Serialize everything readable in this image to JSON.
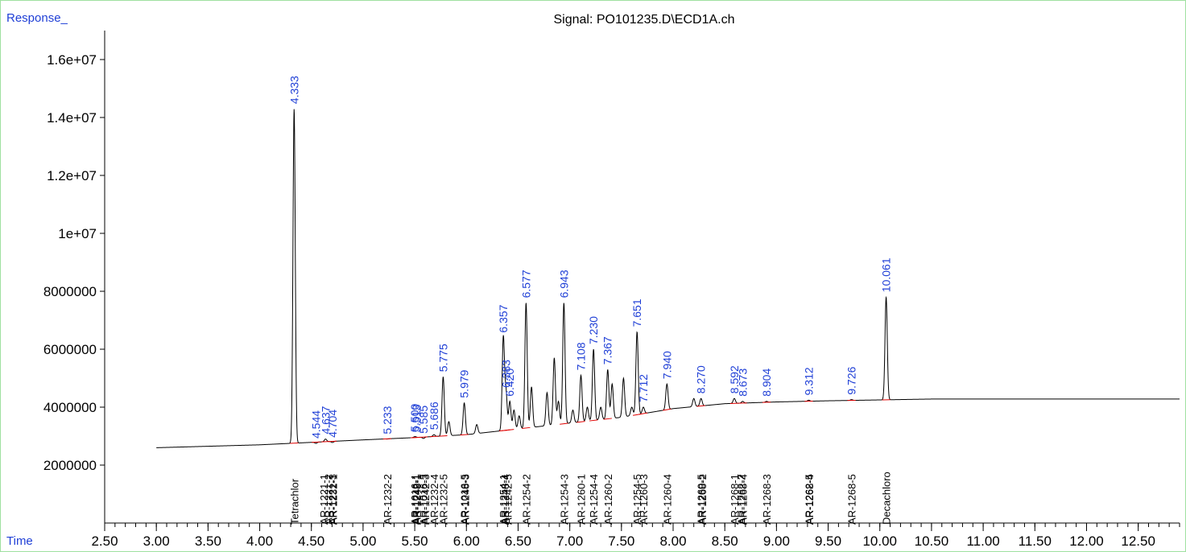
{
  "chart_data": {
    "type": "line",
    "title": "Signal: PO101235.D\\ECD1A.ch",
    "ylabel": "Response_",
    "xlabel": "Time",
    "xlim": [
      2.5,
      12.9
    ],
    "ylim": [
      0,
      17000000
    ],
    "x_ticks": [
      2.5,
      3.0,
      3.5,
      4.0,
      4.5,
      5.0,
      5.5,
      6.0,
      6.5,
      7.0,
      7.5,
      8.0,
      8.5,
      9.0,
      9.5,
      10.0,
      10.5,
      11.0,
      11.5,
      12.0,
      12.5
    ],
    "x_tick_labels": [
      "2.50",
      "3.00",
      "3.50",
      "4.00",
      "4.50",
      "5.00",
      "5.50",
      "6.00",
      "6.50",
      "7.00",
      "7.50",
      "8.00",
      "8.50",
      "9.00",
      "9.50",
      "10.00",
      "10.50",
      "11.00",
      "11.50",
      "12.00",
      "12.50"
    ],
    "y_ticks": [
      2000000,
      4000000,
      6000000,
      8000000,
      10000000,
      12000000,
      14000000,
      16000000
    ],
    "y_tick_labels": [
      "2000000",
      "4000000",
      "6000000",
      "8000000",
      "1e+07",
      "1.2e+07",
      "1.4e+07",
      "1.6e+07"
    ],
    "baseline": [
      [
        3.0,
        2600000
      ],
      [
        4.0,
        2700000
      ],
      [
        5.0,
        2870000
      ],
      [
        5.5,
        2950000
      ],
      [
        6.0,
        3050000
      ],
      [
        6.5,
        3250000
      ],
      [
        7.0,
        3450000
      ],
      [
        7.5,
        3650000
      ],
      [
        8.0,
        3950000
      ],
      [
        8.5,
        4120000
      ],
      [
        9.0,
        4180000
      ],
      [
        9.5,
        4220000
      ],
      [
        10.0,
        4250000
      ],
      [
        10.5,
        4280000
      ],
      [
        11.0,
        4280000
      ],
      [
        12.0,
        4280000
      ],
      [
        12.9,
        4280000
      ]
    ],
    "peaks": [
      {
        "x": 4.333,
        "y": 14300000,
        "label": "4.333"
      },
      {
        "x": 4.544,
        "y": 2750000,
        "label": "4.544"
      },
      {
        "x": 4.637,
        "y": 2900000,
        "label": "4.637"
      },
      {
        "x": 4.704,
        "y": 2780000,
        "label": "4.704"
      },
      {
        "x": 5.233,
        "y": 2900000,
        "label": "5.233"
      },
      {
        "x": 5.5,
        "y": 2980000,
        "label": "5.500"
      },
      {
        "x": 5.513,
        "y": 2960000,
        "label": "5.513"
      },
      {
        "x": 5.585,
        "y": 2920000,
        "label": "5.585"
      },
      {
        "x": 5.686,
        "y": 3050000,
        "label": "5.686"
      },
      {
        "x": 5.775,
        "y": 5050000,
        "label": "5.775"
      },
      {
        "x": 5.83,
        "y": 3500000,
        "label": ""
      },
      {
        "x": 5.979,
        "y": 4150000,
        "label": "5.979"
      },
      {
        "x": 6.1,
        "y": 3400000,
        "label": ""
      },
      {
        "x": 6.357,
        "y": 6400000,
        "label": "6.357"
      },
      {
        "x": 6.383,
        "y": 4500000,
        "label": "6.383"
      },
      {
        "x": 6.42,
        "y": 4200000,
        "label": "6.420"
      },
      {
        "x": 6.46,
        "y": 3900000,
        "label": ""
      },
      {
        "x": 6.51,
        "y": 3700000,
        "label": ""
      },
      {
        "x": 6.577,
        "y": 7600000,
        "label": "6.577"
      },
      {
        "x": 6.63,
        "y": 4700000,
        "label": ""
      },
      {
        "x": 6.78,
        "y": 4500000,
        "label": ""
      },
      {
        "x": 6.85,
        "y": 5700000,
        "label": ""
      },
      {
        "x": 6.89,
        "y": 4200000,
        "label": ""
      },
      {
        "x": 6.943,
        "y": 7600000,
        "label": "6.943"
      },
      {
        "x": 7.03,
        "y": 3900000,
        "label": ""
      },
      {
        "x": 7.108,
        "y": 5100000,
        "label": "7.108"
      },
      {
        "x": 7.17,
        "y": 4000000,
        "label": ""
      },
      {
        "x": 7.23,
        "y": 6000000,
        "label": "7.230"
      },
      {
        "x": 7.3,
        "y": 4000000,
        "label": ""
      },
      {
        "x": 7.367,
        "y": 5300000,
        "label": "7.367"
      },
      {
        "x": 7.41,
        "y": 4800000,
        "label": ""
      },
      {
        "x": 7.52,
        "y": 5000000,
        "label": ""
      },
      {
        "x": 7.6,
        "y": 4000000,
        "label": ""
      },
      {
        "x": 7.651,
        "y": 6600000,
        "label": "7.651"
      },
      {
        "x": 7.712,
        "y": 4000000,
        "label": "7.712"
      },
      {
        "x": 7.94,
        "y": 4800000,
        "label": "7.940"
      },
      {
        "x": 8.2,
        "y": 4300000,
        "label": ""
      },
      {
        "x": 8.27,
        "y": 4300000,
        "label": "8.270"
      },
      {
        "x": 8.592,
        "y": 4300000,
        "label": "8.592"
      },
      {
        "x": 8.673,
        "y": 4200000,
        "label": "8.673"
      },
      {
        "x": 8.904,
        "y": 4200000,
        "label": "8.904"
      },
      {
        "x": 9.312,
        "y": 4240000,
        "label": "9.312"
      },
      {
        "x": 9.726,
        "y": 4260000,
        "label": "9.726"
      },
      {
        "x": 10.061,
        "y": 7800000,
        "label": "10.061"
      }
    ],
    "compounds": [
      {
        "x": 4.333,
        "label": "Tetrachlor"
      },
      {
        "x": 4.62,
        "label": "AR-1221-1"
      },
      {
        "x": 4.66,
        "label": "AR-1221-2"
      },
      {
        "x": 4.7,
        "label": "AR-1221-3"
      },
      {
        "x": 4.71,
        "label": "AR-1232-1"
      },
      {
        "x": 5.233,
        "label": "AR-1232-2"
      },
      {
        "x": 5.5,
        "label": "AR-1016-1"
      },
      {
        "x": 5.51,
        "label": "AR-1242-1"
      },
      {
        "x": 5.52,
        "label": "AR-1248-1"
      },
      {
        "x": 5.585,
        "label": "AR-1016-3"
      },
      {
        "x": 5.6,
        "label": "AR-1242-3"
      },
      {
        "x": 5.686,
        "label": "AR-1232-4"
      },
      {
        "x": 5.775,
        "label": "AR-1232-5"
      },
      {
        "x": 5.979,
        "label": "AR-1016-5"
      },
      {
        "x": 5.985,
        "label": "AR-1248-3"
      },
      {
        "x": 6.357,
        "label": "AR-1254-1"
      },
      {
        "x": 6.37,
        "label": "AR-1248-4"
      },
      {
        "x": 6.4,
        "label": "AR-1242-5"
      },
      {
        "x": 6.577,
        "label": "AR-1254-2"
      },
      {
        "x": 6.943,
        "label": "AR-1254-3"
      },
      {
        "x": 7.108,
        "label": "AR-1260-1"
      },
      {
        "x": 7.23,
        "label": "AR-1254-4"
      },
      {
        "x": 7.367,
        "label": "AR-1260-2"
      },
      {
        "x": 7.651,
        "label": "AR-1254-5"
      },
      {
        "x": 7.712,
        "label": "AR-1260-3"
      },
      {
        "x": 7.94,
        "label": "AR-1260-4"
      },
      {
        "x": 8.27,
        "label": "AR-1260-5"
      },
      {
        "x": 8.28,
        "label": "AR-1268-2"
      },
      {
        "x": 8.592,
        "label": "AR-1268-1"
      },
      {
        "x": 8.66,
        "label": "AR-1262-2"
      },
      {
        "x": 8.673,
        "label": "AR-1268-4"
      },
      {
        "x": 8.904,
        "label": "AR-1268-3"
      },
      {
        "x": 9.312,
        "label": "AR-1262-5"
      },
      {
        "x": 9.315,
        "label": "AR-1268-4"
      },
      {
        "x": 9.726,
        "label": "AR-1268-5"
      },
      {
        "x": 10.061,
        "label": "Decachloro"
      }
    ],
    "colors": {
      "trace": "#000000",
      "peak_label": "#1f3fd6",
      "baseline_mark": "#e00000",
      "axis_label": "#1f3fd6",
      "compound_label": "#000000"
    },
    "grid": false,
    "legend": "none"
  }
}
